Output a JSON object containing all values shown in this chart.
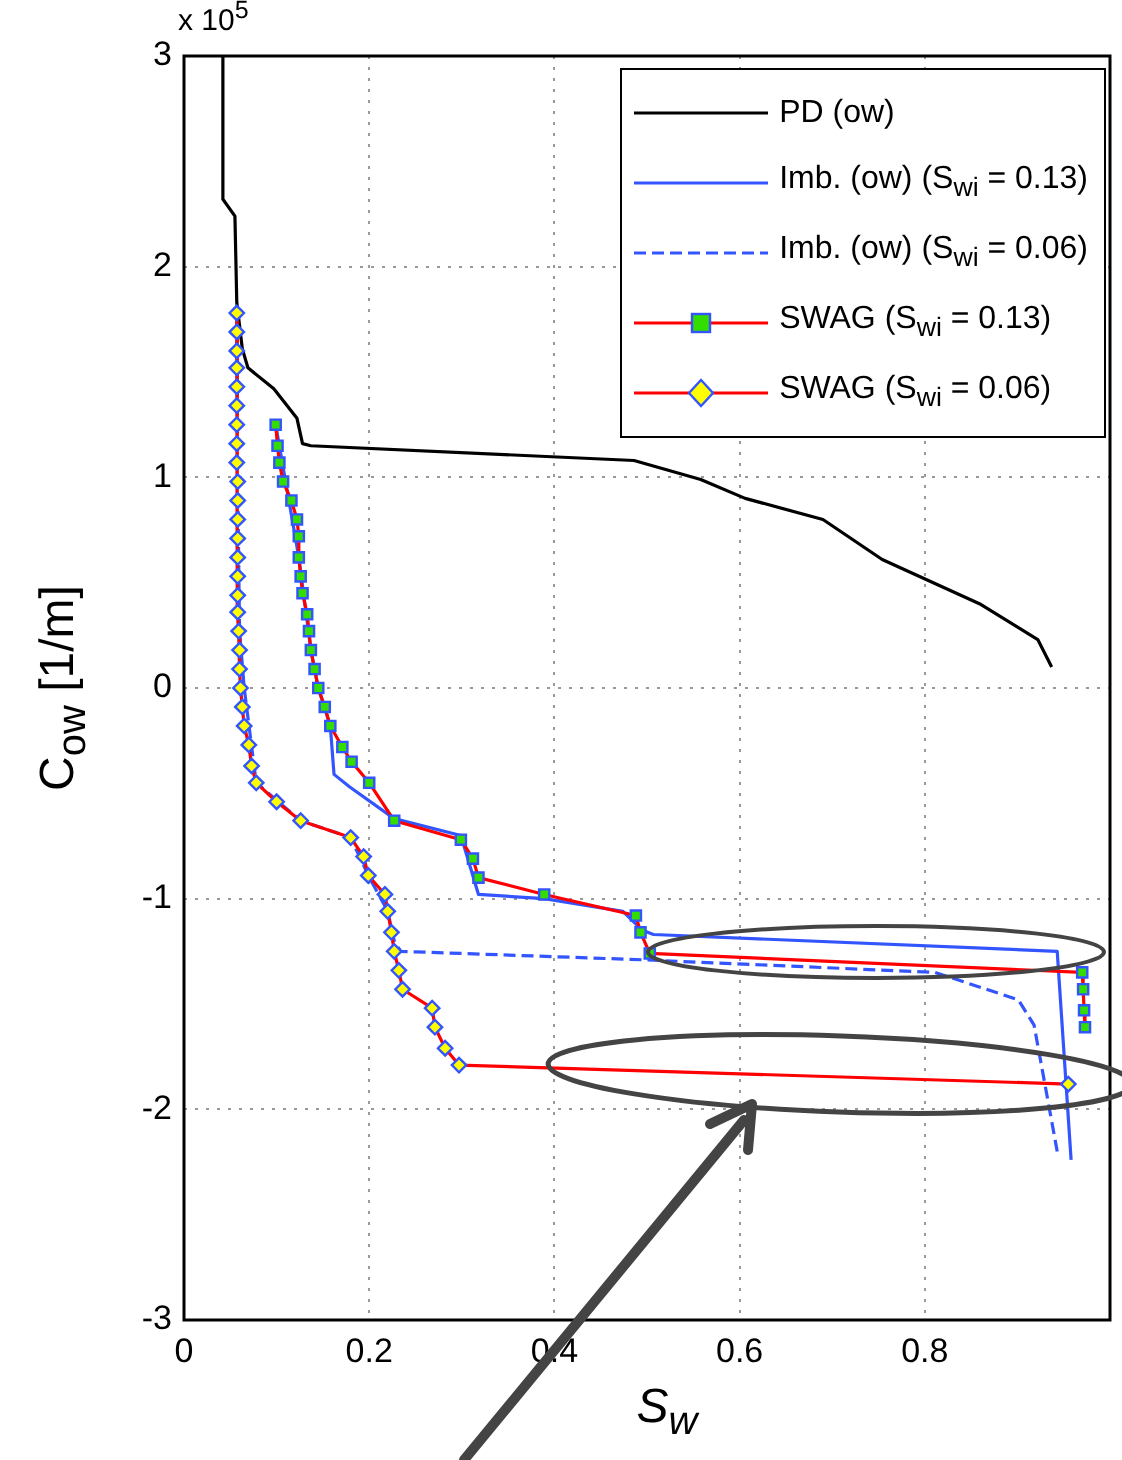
{
  "chart_data": {
    "type": "line",
    "xlabel": "S$_{w}$",
    "ylabel": "C$_{ow}$ [1/m]",
    "annotations": [
      "x 10$^{5}$"
    ],
    "xlim": [
      0,
      1
    ],
    "xticks": [
      0,
      0.2,
      0.4,
      0.6,
      0.8
    ],
    "ylim": [
      -3,
      3
    ],
    "yticks": [
      -3,
      -2,
      -1,
      0,
      1,
      2,
      3
    ],
    "grid": true,
    "legend": "top right",
    "series": [
      {
        "name": "PD (ow)",
        "color": "#000000",
        "marker": "none",
        "line_style": "solid",
        "x": [
          0.042,
          0.042,
          0.055,
          0.057,
          0.063,
          0.069,
          0.097,
          0.122,
          0.128,
          0.137,
          0.486,
          0.558,
          0.606,
          0.69,
          0.754,
          0.859,
          0.922,
          0.937
        ],
        "values": [
          3,
          2.32,
          2.24,
          1.83,
          1.61,
          1.52,
          1.42,
          1.28,
          1.16,
          1.15,
          1.08,
          0.99,
          0.9,
          0.8,
          0.61,
          0.4,
          0.23,
          0.1
        ]
      },
      {
        "name": "Imb. (ow) (S$_{wi}$ = 0.13)",
        "color": "#3355ff",
        "line_style": "solid",
        "x": [
          0.099,
          0.124,
          0.137,
          0.145,
          0.158,
          0.162,
          0.179,
          0.227,
          0.299,
          0.318,
          0.389,
          0.474,
          0.495,
          0.507,
          0.943,
          0.958
        ],
        "values": [
          1.25,
          0.62,
          0.18,
          0,
          -0.18,
          -0.41,
          -0.47,
          -0.62,
          -0.7,
          -0.98,
          -1,
          -1.06,
          -1.15,
          -1.17,
          -1.25,
          -2.24
        ]
      },
      {
        "name": "Imb. (ow) (S$_{wi}$ = 0.06)",
        "color": "#3355ff",
        "line_style": "dashed",
        "x": [
          0.057,
          0.058,
          0.06,
          0.065,
          0.078,
          0.126,
          0.18,
          0.199,
          0.22,
          0.227,
          0.234,
          0.495,
          0.811,
          0.901,
          0.918,
          0.943
        ],
        "values": [
          1.78,
          0.98,
          0.27,
          0,
          -0.45,
          -0.63,
          -0.71,
          -0.89,
          -1.06,
          -1.2,
          -1.25,
          -1.29,
          -1.35,
          -1.48,
          -1.6,
          -2.2
        ]
      },
      {
        "name": "SWAG (S$_{wi}$ = 0.13)",
        "color": "#ff0000",
        "marker": "square",
        "line_style": "solid",
        "x": [
          0.099,
          0.101,
          0.103,
          0.107,
          0.116,
          0.122,
          0.124,
          0.124,
          0.126,
          0.128,
          0.133,
          0.135,
          0.137,
          0.141,
          0.145,
          0.152,
          0.158,
          0.171,
          0.181,
          0.2,
          0.227,
          0.299,
          0.312,
          0.318,
          0.389,
          0.488,
          0.493,
          0.503,
          0.97,
          0.971,
          0.972,
          0.973
        ],
        "values": [
          1.25,
          1.15,
          1.07,
          0.98,
          0.89,
          0.8,
          0.72,
          0.62,
          0.53,
          0.45,
          0.35,
          0.27,
          0.18,
          0.09,
          0,
          -0.09,
          -0.18,
          -0.28,
          -0.35,
          -0.45,
          -0.63,
          -0.72,
          -0.81,
          -0.9,
          -0.98,
          -1.08,
          -1.16,
          -1.26,
          -1.35,
          -1.43,
          -1.53,
          -1.61
        ]
      },
      {
        "name": "SWAG (S$_{wi}$ = 0.06)",
        "color": "#ff0000",
        "marker": "diamond",
        "line_style": "solid",
        "x": [
          0.057,
          0.057,
          0.057,
          0.057,
          0.057,
          0.057,
          0.057,
          0.057,
          0.057,
          0.058,
          0.058,
          0.058,
          0.058,
          0.058,
          0.058,
          0.058,
          0.058,
          0.059,
          0.06,
          0.06,
          0.061,
          0.063,
          0.065,
          0.07,
          0.073,
          0.078,
          0.1,
          0.126,
          0.18,
          0.194,
          0.199,
          0.217,
          0.22,
          0.224,
          0.227,
          0.232,
          0.236,
          0.268,
          0.271,
          0.282,
          0.297,
          0.955
        ],
        "values": [
          1.78,
          1.69,
          1.6,
          1.52,
          1.43,
          1.34,
          1.25,
          1.16,
          1.07,
          0.98,
          0.89,
          0.8,
          0.71,
          0.62,
          0.53,
          0.44,
          0.36,
          0.27,
          0.18,
          0.09,
          0,
          -0.09,
          -0.18,
          -0.27,
          -0.37,
          -0.45,
          -0.54,
          -0.63,
          -0.71,
          -0.8,
          -0.89,
          -0.98,
          -1.06,
          -1.16,
          -1.25,
          -1.34,
          -1.43,
          -1.52,
          -1.61,
          -1.71,
          -1.79,
          -1.88
        ]
      }
    ]
  }
}
